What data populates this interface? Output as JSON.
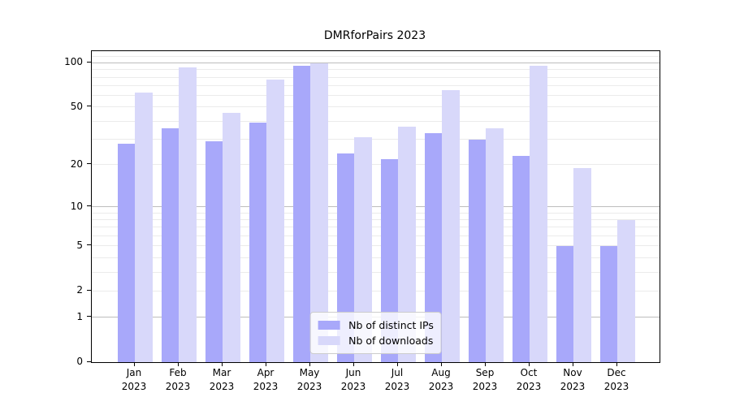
{
  "chart_data": {
    "type": "bar",
    "title": "DMRforPairs 2023",
    "categories": [
      "Jan",
      "Feb",
      "Mar",
      "Apr",
      "May",
      "Jun",
      "Jul",
      "Aug",
      "Sep",
      "Oct",
      "Nov",
      "Dec"
    ],
    "category_year": "2023",
    "series": [
      {
        "name": "Nb of distinct IPs",
        "color": "#a8a8fa",
        "values": [
          28,
          36,
          29,
          39,
          95,
          24,
          22,
          33,
          30,
          23,
          5,
          5
        ]
      },
      {
        "name": "Nb of downloads",
        "color": "#d8d8fa",
        "values": [
          63,
          93,
          46,
          77,
          99,
          31,
          37,
          65,
          36,
          95,
          19,
          8
        ]
      }
    ],
    "yscale": "log1p",
    "ylim": [
      0,
      120
    ],
    "yticks": [
      0,
      1,
      2,
      5,
      10,
      20,
      50,
      100
    ],
    "gridlines": {
      "major": [
        1,
        10,
        100
      ],
      "minor": [
        2,
        3,
        4,
        5,
        6,
        7,
        8,
        9,
        20,
        30,
        40,
        50,
        60,
        70,
        80,
        90,
        110
      ]
    },
    "legend": {
      "position": "lower center"
    },
    "grid": true,
    "colors": {
      "major_grid": "#bdbdbd",
      "minor_grid": "#ebebeb",
      "spine": "#000000",
      "text": "#000000"
    }
  }
}
